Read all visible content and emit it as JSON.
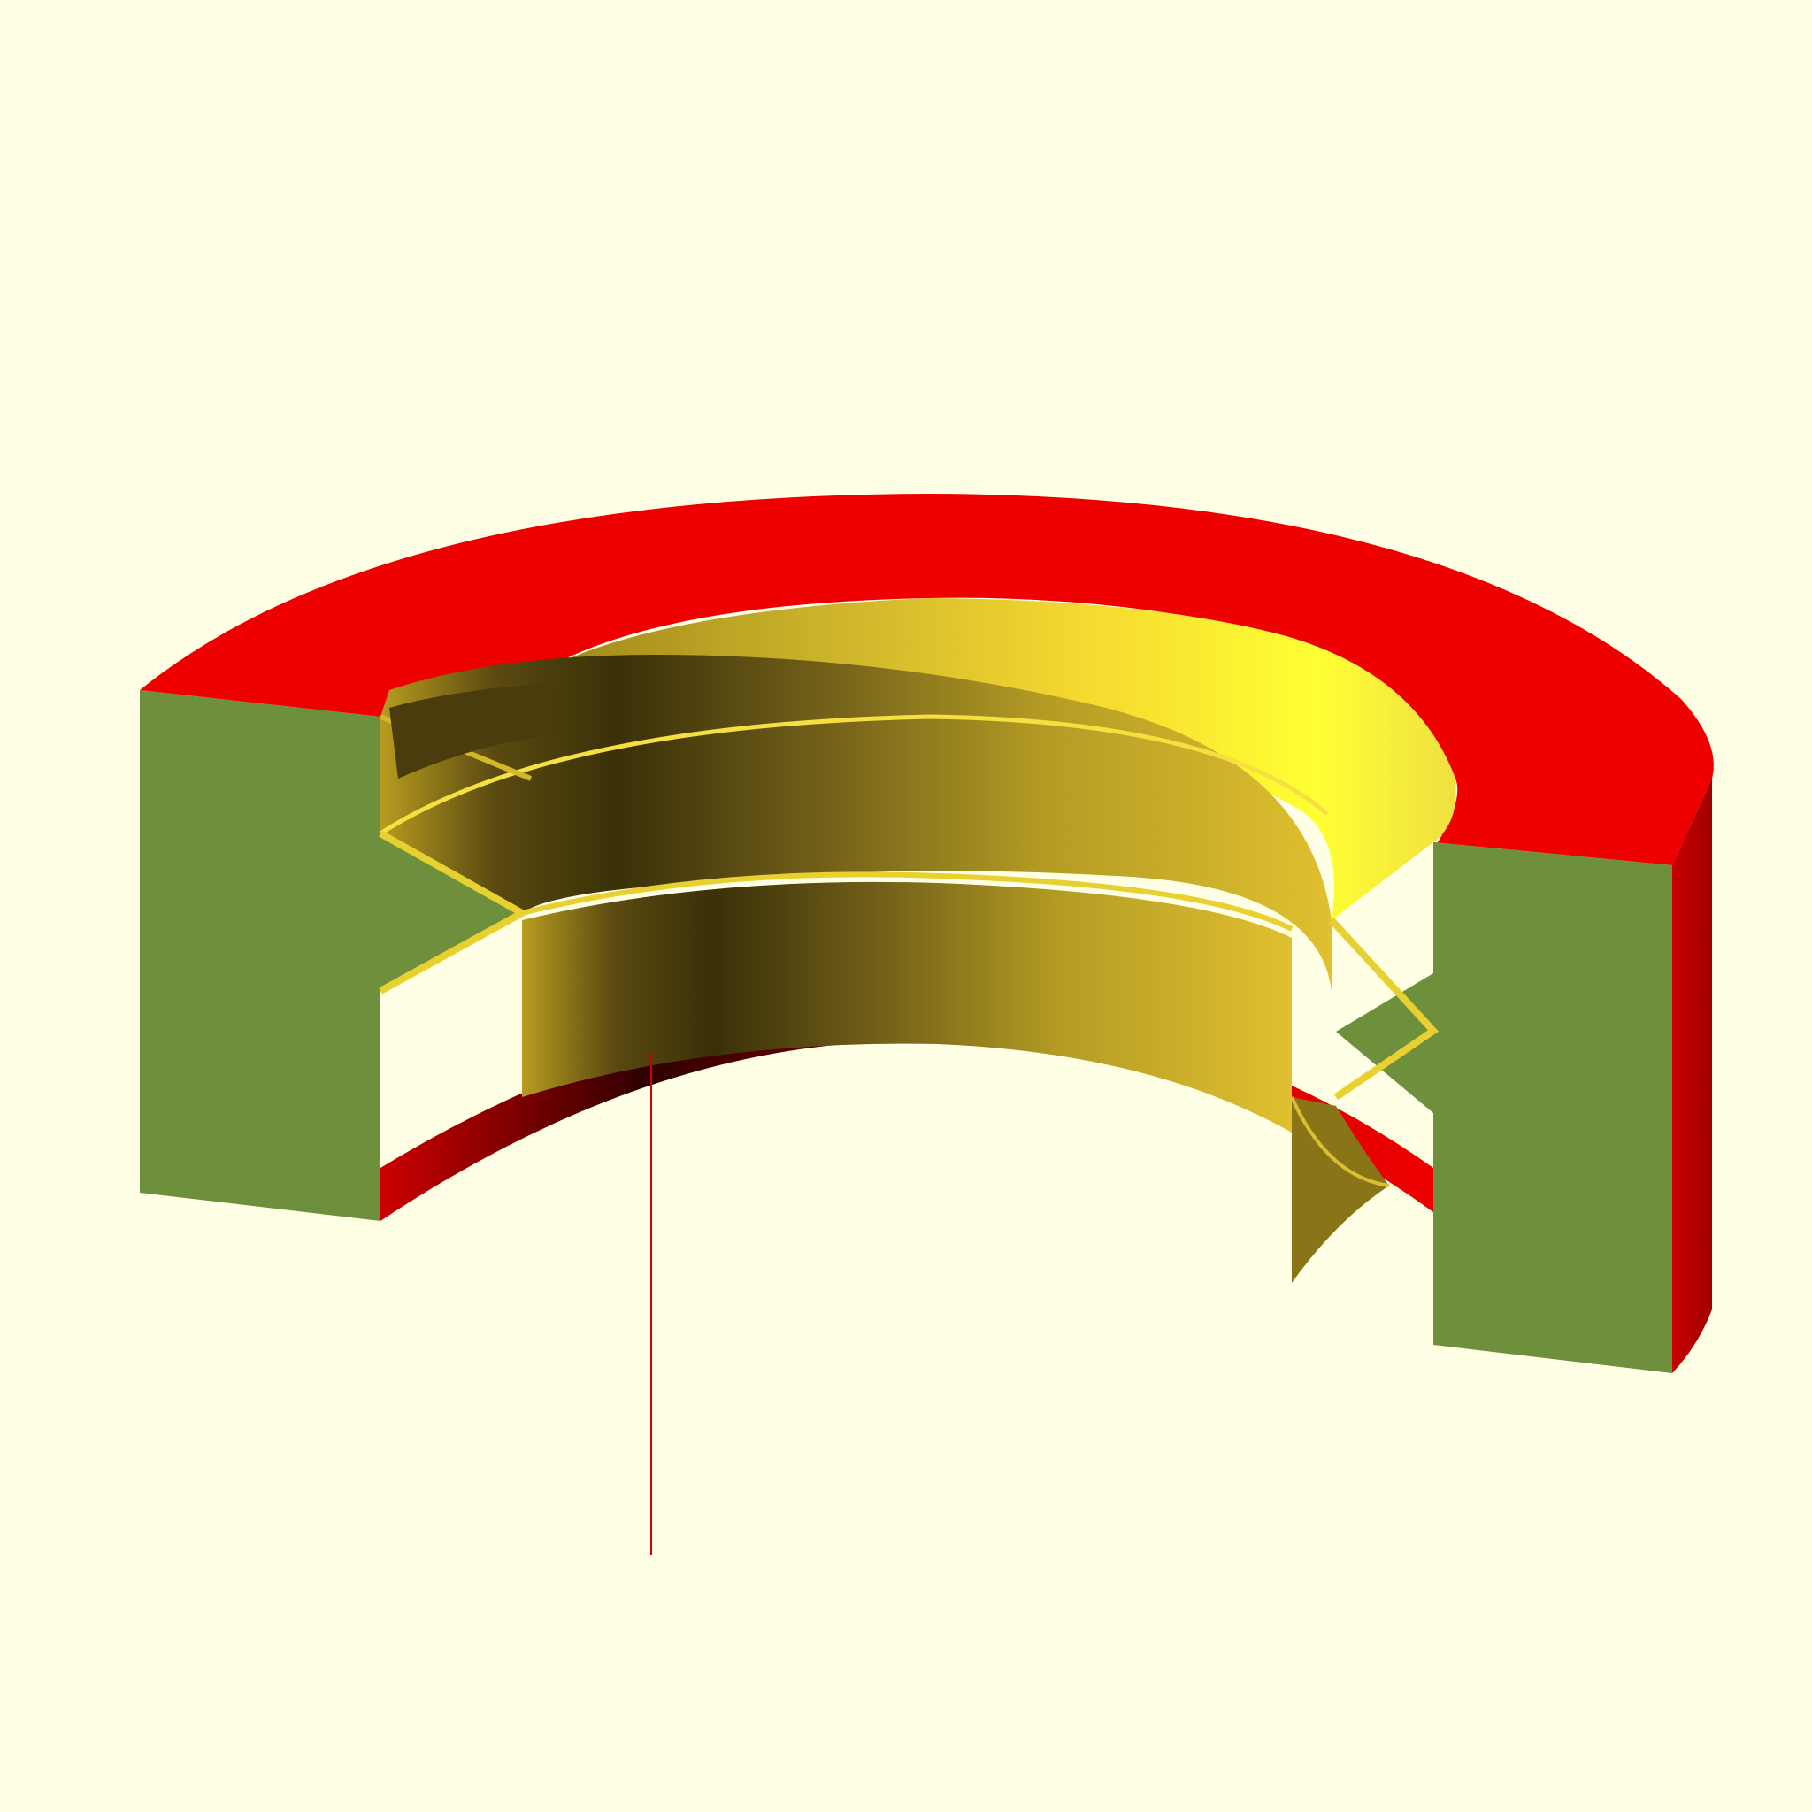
{
  "viewer": {
    "background_color": "#ffffe5",
    "render_kind": "3D cross-section render",
    "colors": {
      "housing_top": "#ee0000",
      "housing_side": "#b00000",
      "housing_inner_dark": "#5a0000",
      "cut_face": "#6e903c",
      "thread_light": "#ffff33",
      "thread_mid": "#c8b02a",
      "thread_dark": "#3a3008",
      "axis_line": "#cc0000"
    },
    "parts": [
      "outer-housing-ring",
      "housing-cut-face-left",
      "housing-cut-face-right",
      "threaded-insert",
      "z-axis-line"
    ]
  }
}
